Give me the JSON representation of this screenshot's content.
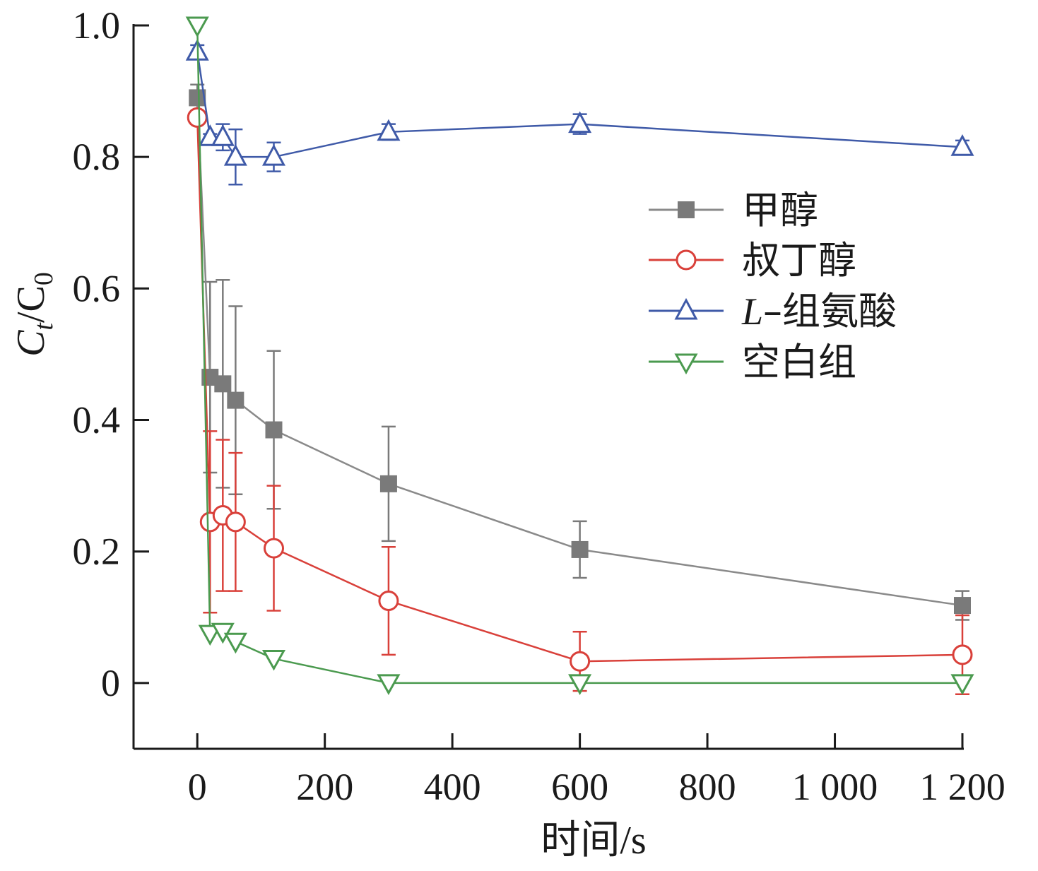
{
  "chart_data": {
    "type": "line",
    "xlabel": "时间/s",
    "ylabel": {
      "main": "C",
      "sub1": "t",
      "slash": "/C",
      "sub2": "0"
    },
    "xlim": [
      -100,
      1200
    ],
    "ylim": [
      -0.1,
      1.0
    ],
    "x_ticks": [
      0,
      200,
      400,
      600,
      800,
      1000,
      1200
    ],
    "x_tick_labels": [
      "0",
      "200",
      "400",
      "600",
      "800",
      "1 000",
      "1 200"
    ],
    "y_ticks": [
      0,
      0.2,
      0.4,
      0.6,
      0.8,
      1.0
    ],
    "y_tick_labels": [
      "0",
      "0.2",
      "0.4",
      "0.6",
      "0.8",
      "1.0"
    ],
    "grid": false,
    "legend_position": "top-right",
    "series": [
      {
        "name": "甲醇",
        "marker": "square-filled",
        "color": "#7a7a7a",
        "line_color": "#8a8a8a",
        "x": [
          0,
          20,
          40,
          60,
          120,
          300,
          600,
          1200
        ],
        "y": [
          0.89,
          0.465,
          0.455,
          0.43,
          0.385,
          0.303,
          0.203,
          0.118
        ],
        "err": [
          0.02,
          0.145,
          0.158,
          0.143,
          0.12,
          0.087,
          0.043,
          0.022
        ]
      },
      {
        "name": "叔丁醇",
        "marker": "circle-open",
        "color": "#d9403a",
        "line_color": "#d9403a",
        "x": [
          0,
          20,
          40,
          60,
          120,
          300,
          600,
          1200
        ],
        "y": [
          0.86,
          0.245,
          0.255,
          0.245,
          0.205,
          0.125,
          0.033,
          0.043
        ],
        "err": [
          0.01,
          0.138,
          0.115,
          0.105,
          0.095,
          0.082,
          0.045,
          0.06
        ]
      },
      {
        "name": "L-组氨酸",
        "marker": "triangle-up-open",
        "color": "#3f5aa8",
        "line_color": "#3f5aa8",
        "x": [
          0,
          20,
          40,
          60,
          120,
          300,
          600,
          1200
        ],
        "y": [
          0.96,
          0.83,
          0.83,
          0.8,
          0.8,
          0.838,
          0.85,
          0.815
        ],
        "err": [
          0.01,
          0.005,
          0.02,
          0.042,
          0.022,
          0.012,
          0.015,
          0.01
        ]
      },
      {
        "name": "空白组",
        "marker": "triangle-down-open",
        "color": "#4b9a4f",
        "line_color": "#4b9a4f",
        "x": [
          0,
          20,
          40,
          60,
          120,
          300,
          600,
          1200
        ],
        "y": [
          1.0,
          0.075,
          0.078,
          0.063,
          0.037,
          0.0,
          0.0,
          0.0
        ],
        "err": [
          0,
          0,
          0,
          0,
          0,
          0,
          0,
          0
        ]
      }
    ]
  },
  "legend": {
    "items": [
      {
        "label": "甲醇"
      },
      {
        "label": "叔丁醇"
      },
      {
        "label_italic": "L",
        "label_rest": "–组氨酸"
      },
      {
        "label": "空白组"
      }
    ]
  }
}
